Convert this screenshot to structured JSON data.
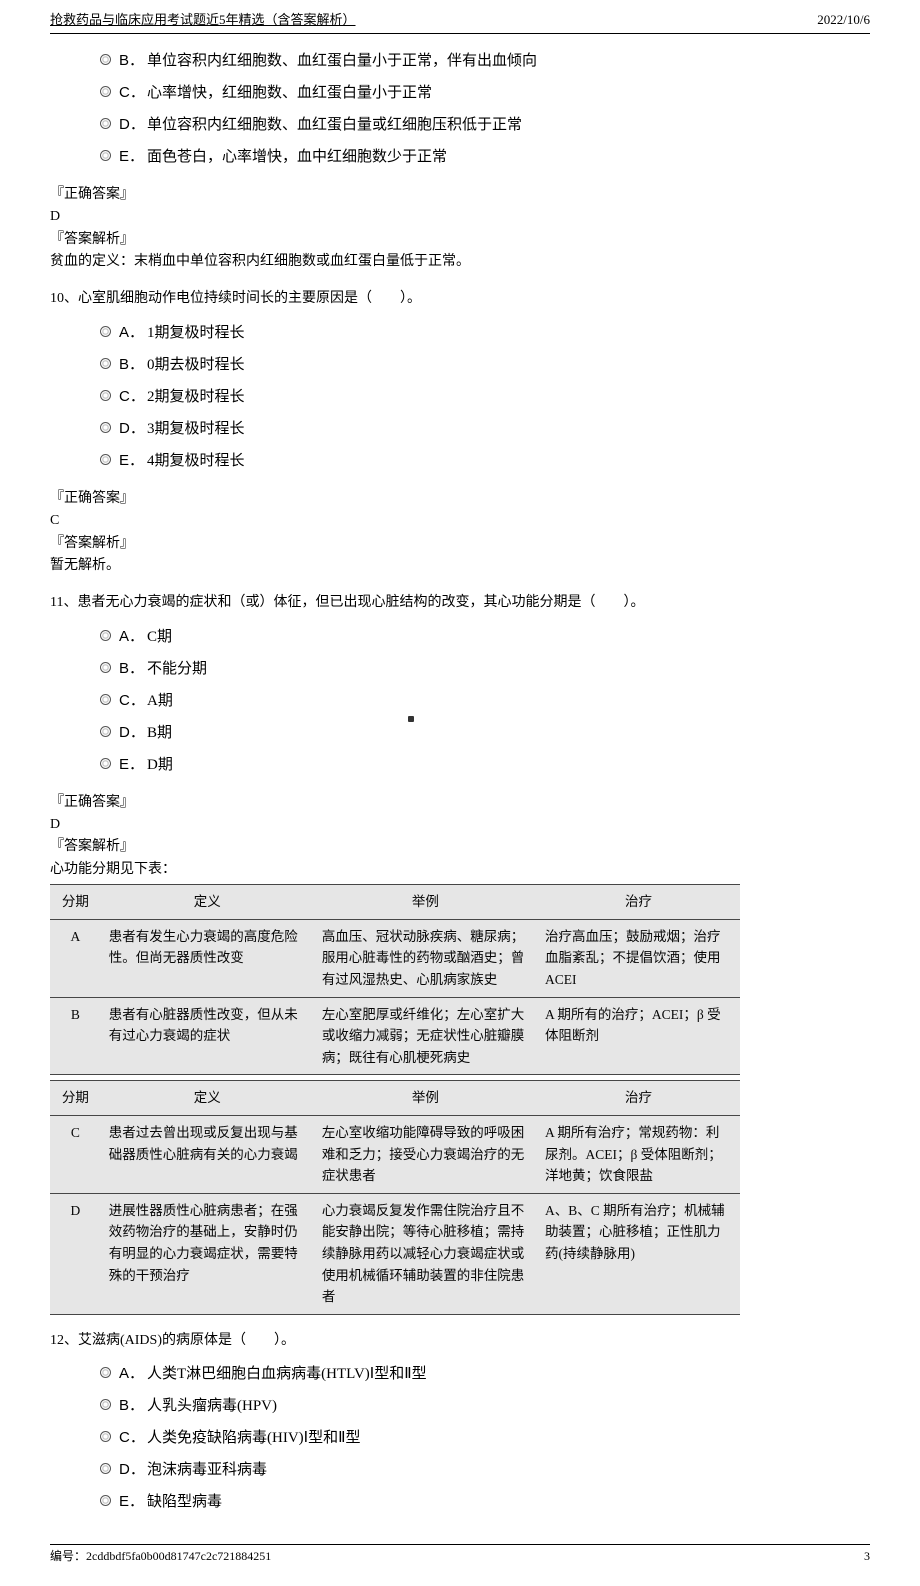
{
  "header": {
    "title": "抢救药品与临床应用考试题近5年精选（含答案解析）",
    "date": "2022/10/6"
  },
  "q9": {
    "options": [
      {
        "label": "B．",
        "text": "单位容积内红细胞数、血红蛋白量小于正常，伴有出血倾向"
      },
      {
        "label": "C．",
        "text": "心率增快，红细胞数、血红蛋白量小于正常"
      },
      {
        "label": "D．",
        "text": "单位容积内红细胞数、血红蛋白量或红细胞压积低于正常"
      },
      {
        "label": "E．",
        "text": "面色苍白，心率增快，血中红细胞数少于正常"
      }
    ],
    "correct_heading": "『正确答案』",
    "correct": "D",
    "analysis_heading": "『答案解析』",
    "analysis": "贫血的定义：末梢血中单位容积内红细胞数或血红蛋白量低于正常。"
  },
  "q10": {
    "stem": "10、心室肌细胞动作电位持续时间长的主要原因是（　　）。",
    "options": [
      {
        "label": "A．",
        "text": "1期复极时程长"
      },
      {
        "label": "B．",
        "text": "0期去极时程长"
      },
      {
        "label": "C．",
        "text": "2期复极时程长"
      },
      {
        "label": "D．",
        "text": "3期复极时程长"
      },
      {
        "label": "E．",
        "text": "4期复极时程长"
      }
    ],
    "correct_heading": "『正确答案』",
    "correct": "C",
    "analysis_heading": "『答案解析』",
    "analysis": "暂无解析。"
  },
  "q11": {
    "stem": "11、患者无心力衰竭的症状和（或）体征，但已出现心脏结构的改变，其心功能分期是（　　）。",
    "options": [
      {
        "label": "A．",
        "text": "C期"
      },
      {
        "label": "B．",
        "text": "不能分期"
      },
      {
        "label": "C．",
        "text": "A期"
      },
      {
        "label": "D．",
        "text": "B期"
      },
      {
        "label": "E．",
        "text": "D期"
      }
    ],
    "correct_heading": "『正确答案』",
    "correct": "D",
    "analysis_heading": "『答案解析』",
    "analysis_intro": "心功能分期见下表：",
    "table1": {
      "headers": [
        "分期",
        "定义",
        "举例",
        "治疗"
      ],
      "rows": [
        {
          "stage": "A",
          "def": "患者有发生心力衰竭的高度危险性。但尚无器质性改变",
          "ex": "高血压、冠状动脉疾病、糖尿病；服用心脏毒性的药物或酗酒史；曾有过风湿热史、心肌病家族史",
          "tr": "治疗高血压；鼓励戒烟；治疗血脂紊乱；不提倡饮酒；使用 ACEI"
        },
        {
          "stage": "B",
          "def": "患者有心脏器质性改变，但从未有过心力衰竭的症状",
          "ex": "左心室肥厚或纤维化；左心室扩大或收缩力减弱；无症状性心脏瓣膜病；既往有心肌梗死病史",
          "tr": "A 期所有的治疗；ACEI；β 受体阻断剂"
        }
      ]
    },
    "table2": {
      "headers": [
        "分期",
        "定义",
        "举例",
        "治疗"
      ],
      "rows": [
        {
          "stage": "C",
          "def": "患者过去曾出现或反复出现与基础器质性心脏病有关的心力衰竭",
          "ex": "左心室收缩功能障碍导致的呼吸困难和乏力；接受心力衰竭治疗的无症状患者",
          "tr": "A 期所有治疗；常规药物：利尿剂。ACEI；β 受体阻断剂；洋地黄；饮食限盐"
        },
        {
          "stage": "D",
          "def": "进展性器质性心脏病患者；在强效药物治疗的基础上，安静时仍有明显的心力衰竭症状，需要特殊的干预治疗",
          "ex": "心力衰竭反复发作需住院治疗且不能安静出院；等待心脏移植；需持续静脉用药以减轻心力衰竭症状或使用机械循环辅助装置的非住院患者",
          "tr": "A、B、C 期所有治疗；机械辅助装置；心脏移植；正性肌力药(持续静脉用)"
        }
      ]
    }
  },
  "q12": {
    "stem": "12、艾滋病(AIDS)的病原体是（　　）。",
    "options": [
      {
        "label": "A．",
        "text": "人类T淋巴细胞白血病病毒(HTLV)Ⅰ型和Ⅱ型"
      },
      {
        "label": "B．",
        "text": "人乳头瘤病毒(HPV)"
      },
      {
        "label": "C．",
        "text": "人类免疫缺陷病毒(HIV)Ⅰ型和Ⅱ型"
      },
      {
        "label": "D．",
        "text": "泡沫病毒亚科病毒"
      },
      {
        "label": "E．",
        "text": "缺陷型病毒"
      }
    ]
  },
  "footer": {
    "id": "编号：2cddbdf5fa0b00d81747c2c721884251",
    "page": "3"
  }
}
